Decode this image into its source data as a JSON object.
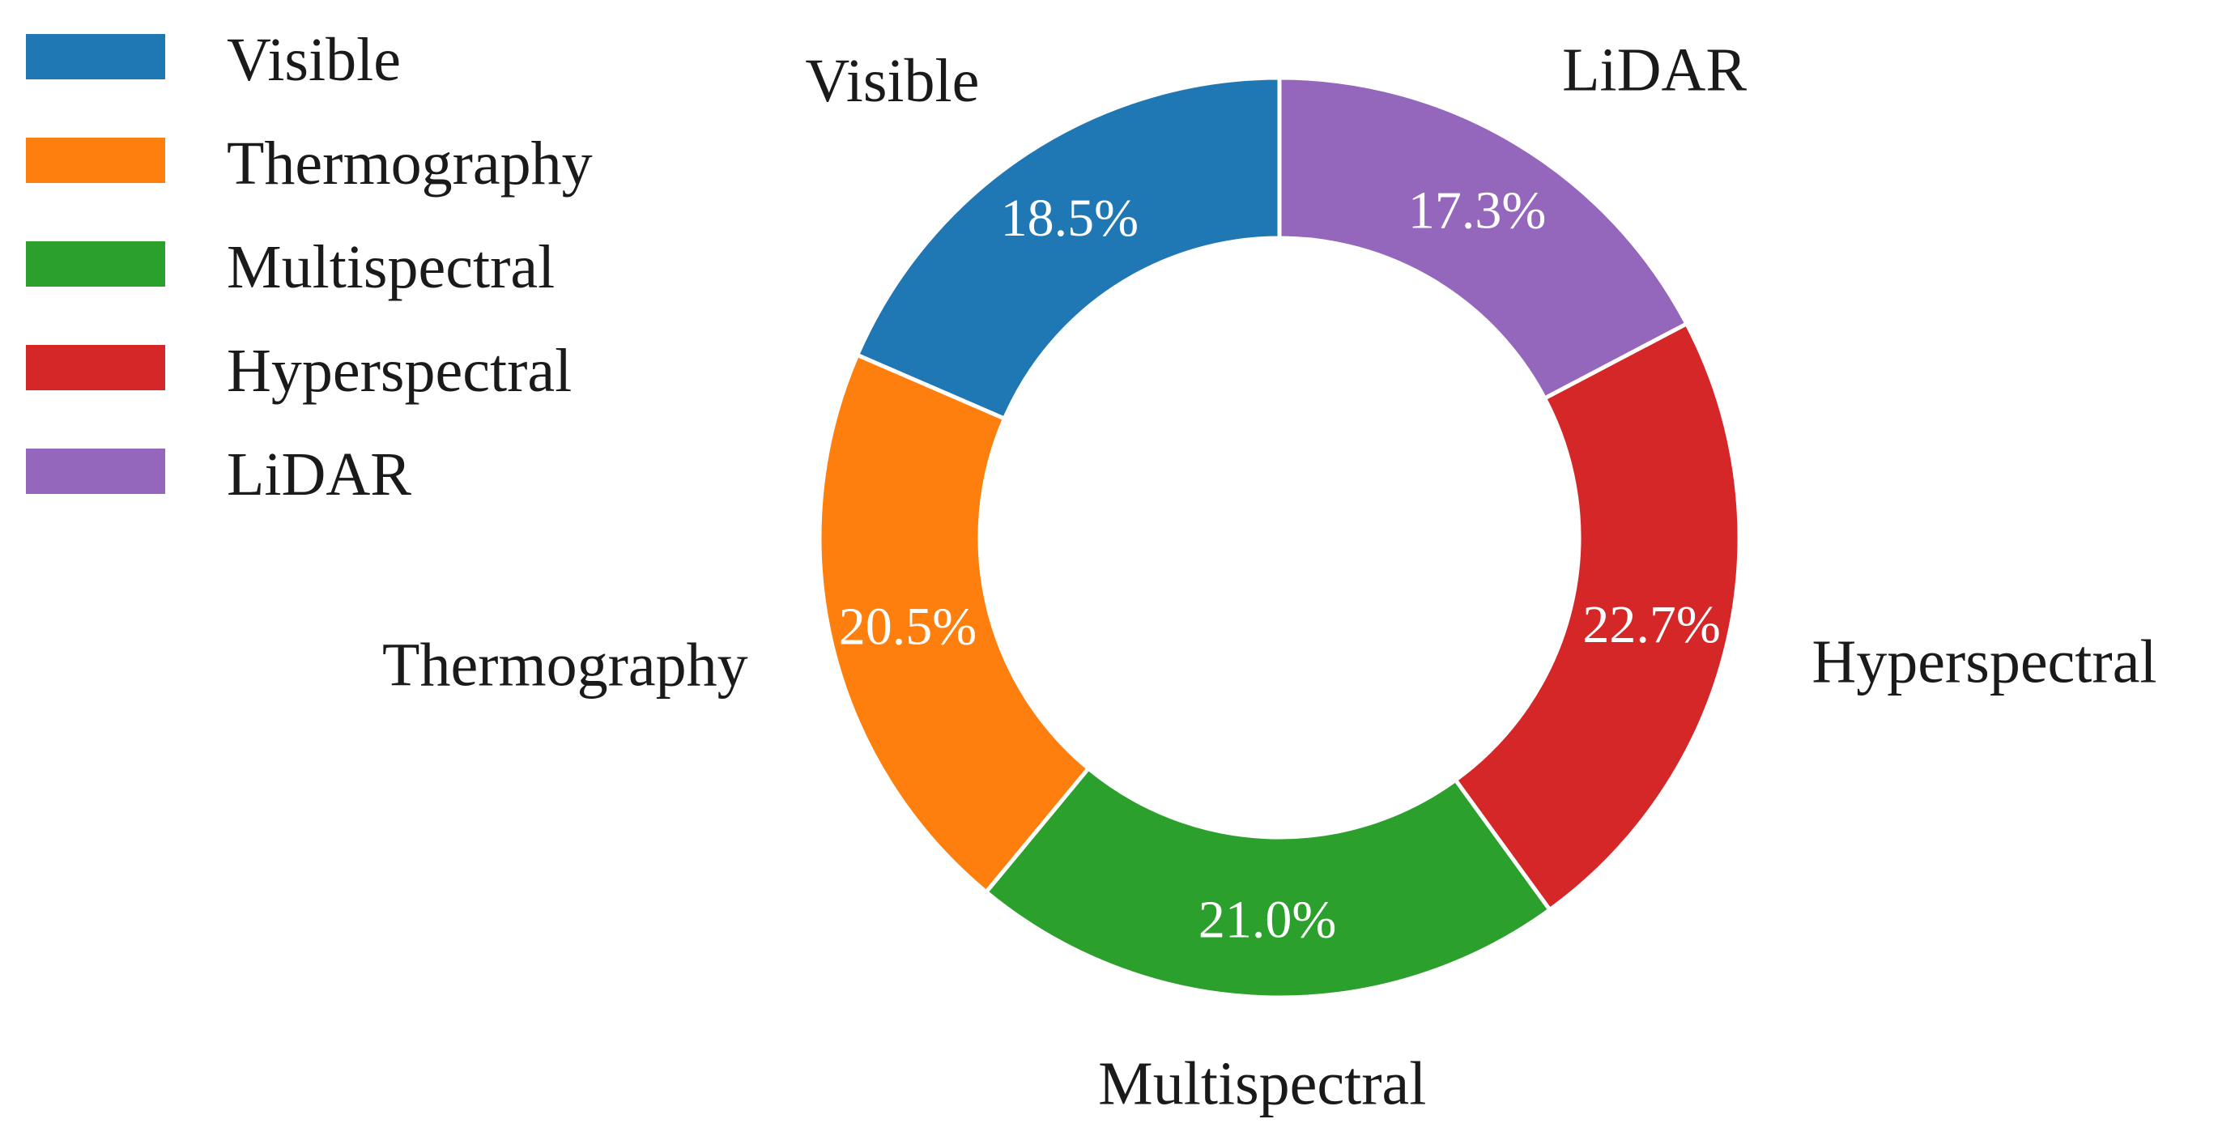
{
  "chart_data": {
    "type": "pie",
    "variant": "donut",
    "title": "",
    "categories": [
      "Visible",
      "Thermography",
      "Multispectral",
      "Hyperspectral",
      "LiDAR"
    ],
    "values": [
      18.5,
      20.5,
      21.0,
      22.7,
      17.3
    ],
    "value_labels": [
      "18.5%",
      "20.5%",
      "21.0%",
      "22.7%",
      "17.3%"
    ],
    "colors": [
      "#1f77b4",
      "#ff7f0e",
      "#2ca02c",
      "#d62728",
      "#9467bd"
    ],
    "start": "top",
    "direction": "counterclockwise",
    "legend": {
      "placement": "top-left",
      "entries": [
        "Visible",
        "Thermography",
        "Multispectral",
        "Hyperspectral",
        "LiDAR"
      ]
    }
  }
}
